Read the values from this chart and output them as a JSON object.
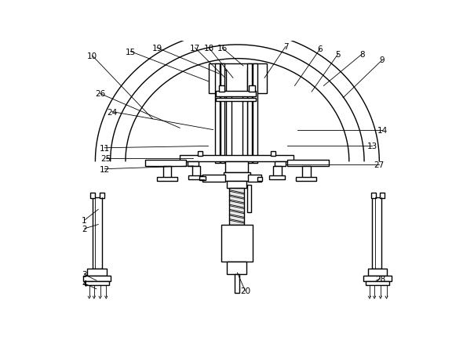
{
  "bg_color": "#ffffff",
  "line_color": "#000000",
  "lw": 1.0,
  "tlw": 0.6,
  "fs": 7.5,
  "annotations": [
    [
      1,
      42,
      298,
      65,
      280
    ],
    [
      2,
      42,
      312,
      65,
      305
    ],
    [
      3,
      42,
      388,
      62,
      398
    ],
    [
      4,
      42,
      403,
      62,
      412
    ],
    [
      5,
      462,
      22,
      418,
      85
    ],
    [
      6,
      432,
      14,
      390,
      75
    ],
    [
      7,
      375,
      10,
      340,
      62
    ],
    [
      8,
      502,
      22,
      438,
      75
    ],
    [
      9,
      535,
      32,
      470,
      95
    ],
    [
      10,
      55,
      25,
      155,
      130
    ],
    [
      11,
      75,
      178,
      247,
      175
    ],
    [
      12,
      75,
      213,
      222,
      208
    ],
    [
      13,
      518,
      175,
      378,
      175
    ],
    [
      14,
      535,
      148,
      395,
      148
    ],
    [
      15,
      118,
      18,
      248,
      68
    ],
    [
      16,
      270,
      12,
      305,
      42
    ],
    [
      17,
      225,
      12,
      275,
      62
    ],
    [
      18,
      248,
      12,
      288,
      62
    ],
    [
      19,
      162,
      12,
      265,
      55
    ],
    [
      20,
      308,
      415,
      295,
      385
    ],
    [
      24,
      88,
      118,
      255,
      148
    ],
    [
      25,
      78,
      195,
      222,
      195
    ],
    [
      26,
      68,
      88,
      200,
      145
    ],
    [
      27,
      530,
      205,
      375,
      205
    ],
    [
      28,
      532,
      395,
      525,
      398
    ]
  ]
}
